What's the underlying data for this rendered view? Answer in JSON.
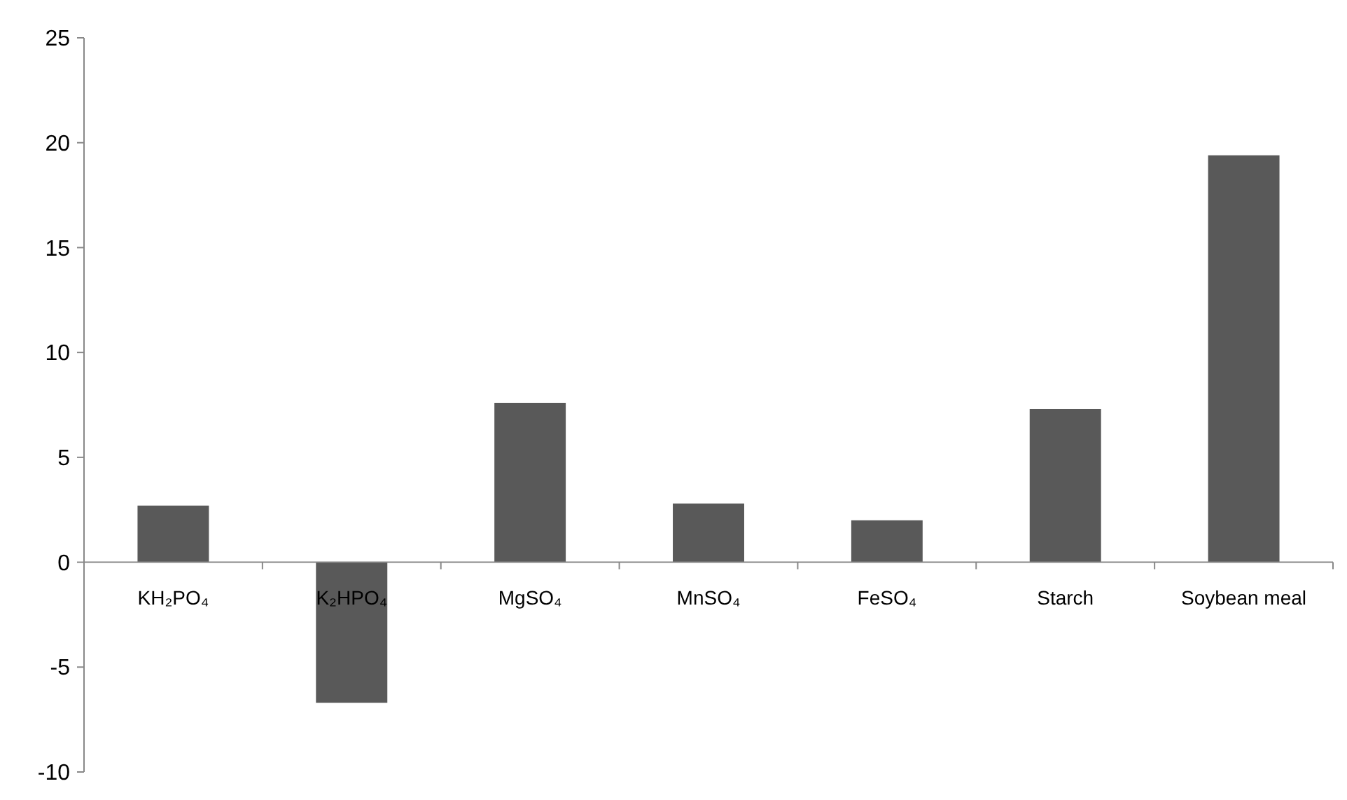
{
  "chart_data": {
    "type": "bar",
    "categories": [
      "KH₂PO₄",
      "K₂HPO₄",
      "MgSO₄",
      "MnSO₄",
      "FeSO₄",
      "Starch",
      "Soybean meal"
    ],
    "values": [
      2.7,
      -6.7,
      7.6,
      2.8,
      2.0,
      7.3,
      19.4
    ],
    "color": "#595959",
    "ylim": [
      -10,
      25
    ],
    "yticks": [
      -10,
      -5,
      0,
      5,
      10,
      15,
      20,
      25
    ],
    "grid": false
  }
}
